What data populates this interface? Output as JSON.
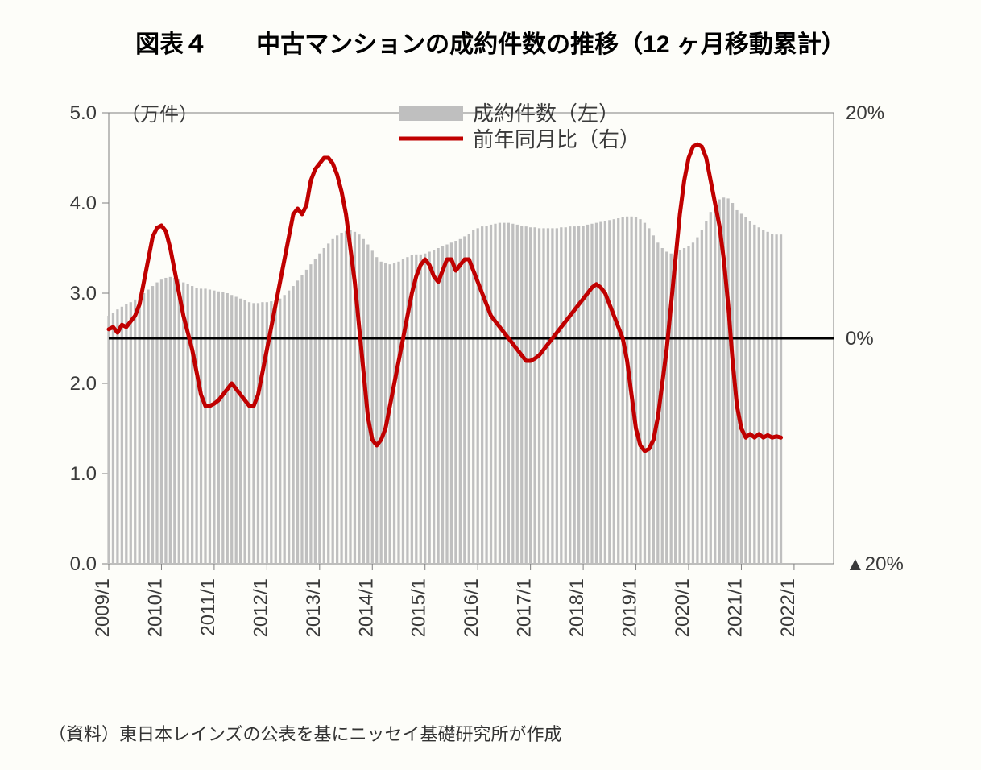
{
  "title": "図表４　　中古マンションの成約件数の推移（12 ヶ月移動累計）",
  "source": "（資料）東日本レインズの公表を基にニッセイ基礎研究所が作成",
  "chart": {
    "type": "combo-bar-line-dual-axis",
    "background_color": "#fdfdf9",
    "plot_border_color": "#808080",
    "zero_line_color": "#000000",
    "zero_line_width": 3,
    "left_axis": {
      "unit_label": "（万件）",
      "min": 0.0,
      "max": 5.0,
      "ticks": [
        "0.0",
        "1.0",
        "2.0",
        "3.0",
        "4.0",
        "5.0"
      ],
      "tick_values": [
        0,
        1,
        2,
        3,
        4,
        5
      ],
      "tick_fontsize": 24,
      "tick_color": "#3a3a3a"
    },
    "right_axis": {
      "min": -20,
      "max": 20,
      "ticks": [
        "▲20%",
        "0%",
        "20%"
      ],
      "tick_values": [
        -20,
        0,
        20
      ],
      "tick_fontsize": 24,
      "tick_color": "#3a3a3a"
    },
    "x_axis": {
      "tick_labels": [
        "2009/1",
        "2010/1",
        "2011/1",
        "2012/1",
        "2013/1",
        "2014/1",
        "2015/1",
        "2016/1",
        "2017/1",
        "2018/1",
        "2019/1",
        "2020/1",
        "2021/1",
        "2022/1"
      ],
      "tick_indices": [
        0,
        12,
        24,
        36,
        48,
        60,
        72,
        84,
        96,
        108,
        120,
        132,
        144,
        156
      ],
      "tick_fontsize": 24,
      "tick_color": "#3a3a3a",
      "rotation": -90
    },
    "legend": {
      "items": [
        {
          "label": "成約件数（左）",
          "type": "bar",
          "color": "#bfbfbf"
        },
        {
          "label": "前年同月比（右）",
          "type": "line",
          "color": "#c00000"
        }
      ],
      "fontsize": 26,
      "text_color": "#3a3a3a",
      "position": "top-right-inside"
    },
    "series_bar": {
      "name": "成約件数（左）",
      "color": "#bfbfbf",
      "axis": "left",
      "n_points": 166,
      "values": [
        2.75,
        2.78,
        2.82,
        2.85,
        2.88,
        2.9,
        2.93,
        2.96,
        3.0,
        3.04,
        3.08,
        3.12,
        3.15,
        3.17,
        3.18,
        3.17,
        3.15,
        3.12,
        3.1,
        3.08,
        3.06,
        3.05,
        3.05,
        3.04,
        3.03,
        3.02,
        3.01,
        3.0,
        2.98,
        2.96,
        2.94,
        2.92,
        2.9,
        2.89,
        2.89,
        2.9,
        2.9,
        2.91,
        2.92,
        2.94,
        2.98,
        3.03,
        3.08,
        3.14,
        3.2,
        3.26,
        3.32,
        3.38,
        3.44,
        3.5,
        3.55,
        3.6,
        3.64,
        3.67,
        3.69,
        3.7,
        3.68,
        3.65,
        3.6,
        3.54,
        3.47,
        3.4,
        3.35,
        3.33,
        3.32,
        3.33,
        3.35,
        3.38,
        3.4,
        3.42,
        3.43,
        3.43,
        3.44,
        3.46,
        3.48,
        3.5,
        3.52,
        3.54,
        3.56,
        3.58,
        3.6,
        3.63,
        3.66,
        3.7,
        3.72,
        3.74,
        3.75,
        3.76,
        3.77,
        3.78,
        3.78,
        3.78,
        3.77,
        3.76,
        3.75,
        3.74,
        3.73,
        3.73,
        3.72,
        3.72,
        3.72,
        3.72,
        3.72,
        3.73,
        3.73,
        3.74,
        3.74,
        3.75,
        3.75,
        3.76,
        3.77,
        3.78,
        3.79,
        3.8,
        3.81,
        3.82,
        3.83,
        3.84,
        3.85,
        3.85,
        3.84,
        3.82,
        3.78,
        3.72,
        3.64,
        3.56,
        3.5,
        3.46,
        3.44,
        3.45,
        3.48,
        3.5,
        3.52,
        3.56,
        3.62,
        3.7,
        3.8,
        3.9,
        3.98,
        4.04,
        4.06,
        4.05,
        4.0,
        3.92,
        3.88,
        3.84,
        3.8,
        3.76,
        3.73,
        3.7,
        3.68,
        3.66,
        3.65,
        3.65
      ]
    },
    "series_line": {
      "name": "前年同月比（右）",
      "color": "#c00000",
      "width": 5,
      "axis": "right",
      "n_points": 166,
      "values": [
        0.8,
        1.0,
        0.5,
        1.2,
        1.0,
        1.5,
        2.0,
        3.0,
        5.0,
        7.0,
        9.0,
        9.8,
        10.0,
        9.5,
        8.0,
        6.0,
        4.0,
        2.0,
        0.5,
        -1.0,
        -3.0,
        -5.0,
        -6.0,
        -6.0,
        -5.8,
        -5.5,
        -5.0,
        -4.5,
        -4.0,
        -4.5,
        -5.0,
        -5.5,
        -6.0,
        -6.0,
        -5.0,
        -3.0,
        -1.0,
        1.0,
        3.0,
        5.0,
        7.0,
        9.0,
        11.0,
        11.5,
        11.0,
        11.8,
        14.0,
        15.0,
        15.5,
        16.0,
        16.0,
        15.5,
        14.5,
        13.0,
        11.0,
        8.0,
        5.0,
        1.0,
        -3.0,
        -7.0,
        -9.0,
        -9.5,
        -9.0,
        -8.0,
        -6.0,
        -4.0,
        -2.0,
        0.0,
        2.0,
        4.0,
        5.5,
        6.5,
        7.0,
        6.5,
        5.5,
        5.0,
        6.0,
        7.0,
        7.0,
        6.0,
        6.5,
        7.0,
        7.0,
        6.0,
        5.0,
        4.0,
        3.0,
        2.0,
        1.5,
        1.0,
        0.5,
        0.0,
        -0.5,
        -1.0,
        -1.5,
        -2.0,
        -2.0,
        -1.8,
        -1.5,
        -1.0,
        -0.5,
        0.0,
        0.5,
        1.0,
        1.5,
        2.0,
        2.5,
        3.0,
        3.5,
        4.0,
        4.5,
        4.8,
        4.5,
        4.0,
        3.0,
        2.0,
        1.0,
        0.0,
        -2.0,
        -5.0,
        -8.0,
        -9.5,
        -10.0,
        -9.8,
        -9.0,
        -7.0,
        -4.0,
        -1.0,
        3.0,
        7.0,
        11.0,
        14.0,
        16.0,
        17.0,
        17.2,
        17.0,
        16.0,
        14.0,
        12.0,
        10.0,
        7.0,
        3.0,
        -2.0,
        -6.0,
        -8.0,
        -8.8,
        -8.5,
        -8.8,
        -8.5,
        -8.8,
        -8.6,
        -8.8,
        -8.7,
        -8.8
      ]
    }
  }
}
